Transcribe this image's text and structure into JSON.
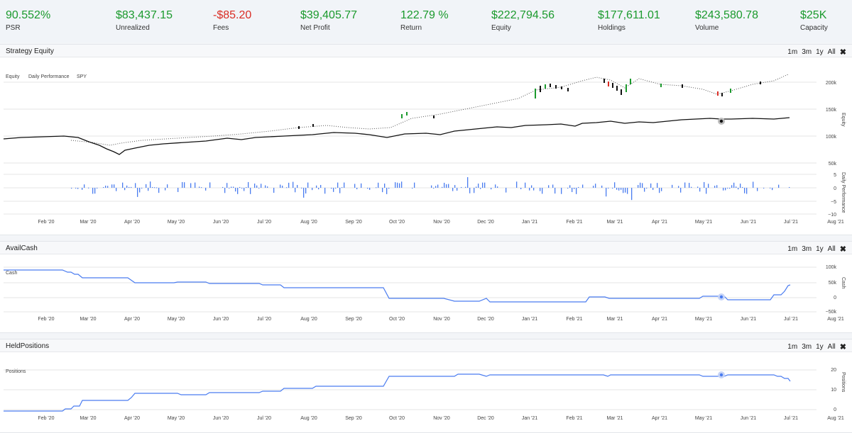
{
  "stats": [
    {
      "value": "90.552%",
      "label": "PSR",
      "negative": false
    },
    {
      "value": "$83,437.15",
      "label": "Unrealized",
      "negative": false
    },
    {
      "value": "-$85.20",
      "label": "Fees",
      "negative": true
    },
    {
      "value": "$39,405.77",
      "label": "Net Profit",
      "negative": false
    },
    {
      "value": "122.79 %",
      "label": "Return",
      "negative": false
    },
    {
      "value": "$222,794.56",
      "label": "Equity",
      "negative": false
    },
    {
      "value": "$177,611.01",
      "label": "Holdings",
      "negative": false
    },
    {
      "value": "$243,580.78",
      "label": "Volume",
      "negative": false
    },
    {
      "value": "$25K",
      "label": "Capacity",
      "negative": false
    }
  ],
  "range_buttons": [
    "1m",
    "3m",
    "1y",
    "All"
  ],
  "months": [
    "Feb '20",
    "Mar '20",
    "Apr '20",
    "May '20",
    "Jun '20",
    "Jul '20",
    "Aug '20",
    "Sep '20",
    "Oct '20",
    "Nov '20",
    "Dec '20",
    "Jan '21",
    "Feb '21",
    "Mar '21",
    "Apr '21",
    "May '21",
    "Jun '21",
    "Jul '21",
    "Aug '21"
  ],
  "panels": {
    "equity": {
      "title": "Strategy Equity",
      "legend": [
        "Equity",
        "Daily Performance",
        "SPY"
      ],
      "axis_label": "Equity",
      "ticks": [
        "200k",
        "150k",
        "100k",
        "50k"
      ],
      "perf_axis_label": "Daily Performance",
      "perf_ticks": [
        "5",
        "0",
        "−5",
        "−10"
      ]
    },
    "cash": {
      "title": "AvailCash",
      "legend": "Cash",
      "axis_label": "Cash",
      "ticks": [
        "100k",
        "50k",
        "0",
        "−50k"
      ]
    },
    "positions": {
      "title": "HeldPositions",
      "legend": "Positions",
      "axis_label": "Positions",
      "ticks": [
        "20",
        "10",
        "0"
      ]
    }
  },
  "colors": {
    "positive": "#1b9a2d",
    "negative": "#d92c24",
    "series": "#4a7cf0",
    "spy": "#111111"
  }
}
